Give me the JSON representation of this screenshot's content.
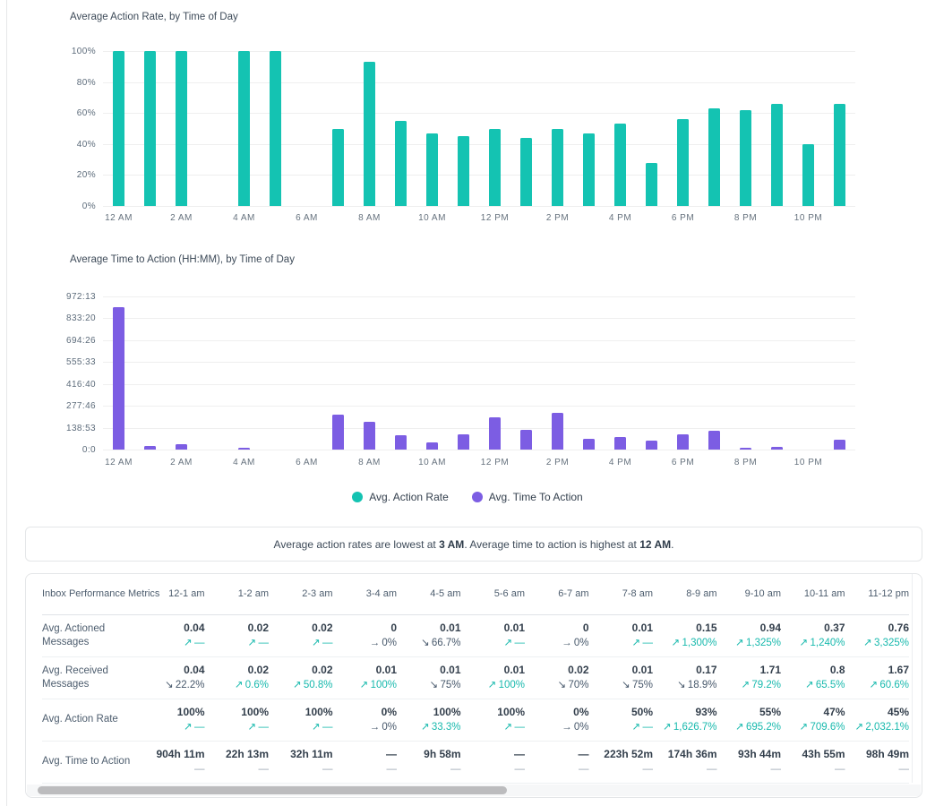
{
  "colors": {
    "teal": "#14C3B2",
    "purple": "#7C5DE3",
    "trend_up": "#17B9AD",
    "trend_down": "#47586B",
    "grid": "#EFEFEF",
    "border": "#E4E6E8"
  },
  "icons": {
    "up": "↗",
    "down": "↘",
    "flat": "→",
    "legend_dot": "circle"
  },
  "chart_data": [
    {
      "type": "bar",
      "title": "Average Action Rate, by Time of Day",
      "series_name": "Avg. Action Rate",
      "color": "#14C3B2",
      "unit": "%",
      "x": [
        "12 AM",
        "1 AM",
        "2 AM",
        "3 AM",
        "4 AM",
        "5 AM",
        "6 AM",
        "7 AM",
        "8 AM",
        "9 AM",
        "10 AM",
        "11 AM",
        "12 PM",
        "1 PM",
        "2 PM",
        "3 PM",
        "4 PM",
        "5 PM",
        "6 PM",
        "7 PM",
        "8 PM",
        "9 PM",
        "10 PM",
        "11 PM"
      ],
      "values": [
        100,
        100,
        100,
        0,
        100,
        100,
        0,
        50,
        93,
        55,
        47,
        45,
        50,
        44,
        50,
        47,
        53,
        28,
        56,
        63,
        62,
        66,
        40,
        66
      ],
      "ylim": [
        0,
        100
      ],
      "y_ticks": [
        "0%",
        "20%",
        "40%",
        "60%",
        "80%",
        "100%"
      ],
      "x_ticks": [
        "12 AM",
        "2 AM",
        "4 AM",
        "6 AM",
        "8 AM",
        "10 AM",
        "12 PM",
        "2 PM",
        "4 PM",
        "6 PM",
        "8 PM",
        "10 PM"
      ],
      "grid": true,
      "legend_position": "bottom-center"
    },
    {
      "type": "bar",
      "title": "Average Time to Action (HH:MM), by Time of Day",
      "series_name": "Avg. Time To Action",
      "color": "#7C5DE3",
      "unit": "hours",
      "x": [
        "12 AM",
        "1 AM",
        "2 AM",
        "3 AM",
        "4 AM",
        "5 AM",
        "6 AM",
        "7 AM",
        "8 AM",
        "9 AM",
        "10 AM",
        "11 AM",
        "12 PM",
        "1 PM",
        "2 PM",
        "3 PM",
        "4 PM",
        "5 PM",
        "6 PM",
        "7 PM",
        "8 PM",
        "9 PM",
        "10 PM",
        "11 PM"
      ],
      "values": [
        904.18,
        22.22,
        32.18,
        0,
        9.97,
        0,
        0,
        223.87,
        174.6,
        93.73,
        43.92,
        98.82,
        203,
        124,
        234,
        68,
        82,
        59,
        99,
        122,
        13,
        15,
        0,
        60
      ],
      "ylim": [
        0,
        972.22
      ],
      "y_ticks": [
        "0:0",
        "138:53",
        "277:46",
        "416:40",
        "555:33",
        "694:26",
        "833:20",
        "972:13"
      ],
      "x_ticks": [
        "12 AM",
        "2 AM",
        "4 AM",
        "6 AM",
        "8 AM",
        "10 AM",
        "12 PM",
        "2 PM",
        "4 PM",
        "6 PM",
        "8 PM",
        "10 PM"
      ],
      "grid": true,
      "legend_position": "bottom-center"
    }
  ],
  "legend": {
    "items": [
      {
        "label": "Avg. Action Rate",
        "color_key": "teal"
      },
      {
        "label": "Avg. Time To Action",
        "color_key": "purple"
      }
    ]
  },
  "summary": {
    "pre": "Average action rates are lowest at ",
    "bold1": "3 AM",
    "mid": ". Average time to action is highest at ",
    "bold2": "12 AM",
    "post": "."
  },
  "table": {
    "title": "Inbox Performance Metrics",
    "columns": [
      "12-1 am",
      "1-2 am",
      "2-3 am",
      "3-4 am",
      "4-5 am",
      "5-6 am",
      "6-7 am",
      "7-8 am",
      "8-9 am",
      "9-10 am",
      "10-11 am",
      "11-12 pm"
    ],
    "rows": [
      {
        "label": "Avg. Actioned Messages",
        "cells": [
          {
            "v": "0.04",
            "a": "up",
            "c": "—"
          },
          {
            "v": "0.02",
            "a": "up",
            "c": "—"
          },
          {
            "v": "0.02",
            "a": "up",
            "c": "—"
          },
          {
            "v": "0",
            "a": "flat",
            "c": "0%"
          },
          {
            "v": "0.01",
            "a": "down",
            "c": "66.7%"
          },
          {
            "v": "0.01",
            "a": "up",
            "c": "—"
          },
          {
            "v": "0",
            "a": "flat",
            "c": "0%"
          },
          {
            "v": "0.01",
            "a": "up",
            "c": "—"
          },
          {
            "v": "0.15",
            "a": "up",
            "c": "1,300%"
          },
          {
            "v": "0.94",
            "a": "up",
            "c": "1,325%"
          },
          {
            "v": "0.37",
            "a": "up",
            "c": "1,240%"
          },
          {
            "v": "0.76",
            "a": "up",
            "c": "3,325%"
          }
        ]
      },
      {
        "label": "Avg. Received Messages",
        "cells": [
          {
            "v": "0.04",
            "a": "down",
            "c": "22.2%"
          },
          {
            "v": "0.02",
            "a": "up",
            "c": "0.6%"
          },
          {
            "v": "0.02",
            "a": "up",
            "c": "50.8%"
          },
          {
            "v": "0.01",
            "a": "up",
            "c": "100%"
          },
          {
            "v": "0.01",
            "a": "down",
            "c": "75%"
          },
          {
            "v": "0.01",
            "a": "up",
            "c": "100%"
          },
          {
            "v": "0.02",
            "a": "down",
            "c": "70%"
          },
          {
            "v": "0.01",
            "a": "down",
            "c": "75%"
          },
          {
            "v": "0.17",
            "a": "down",
            "c": "18.9%"
          },
          {
            "v": "1.71",
            "a": "up",
            "c": "79.2%"
          },
          {
            "v": "0.8",
            "a": "up",
            "c": "65.5%"
          },
          {
            "v": "1.67",
            "a": "up",
            "c": "60.6%"
          }
        ]
      },
      {
        "label": "Avg. Action Rate",
        "cells": [
          {
            "v": "100%",
            "a": "up",
            "c": "—"
          },
          {
            "v": "100%",
            "a": "up",
            "c": "—"
          },
          {
            "v": "100%",
            "a": "up",
            "c": "—"
          },
          {
            "v": "0%",
            "a": "flat",
            "c": "0%"
          },
          {
            "v": "100%",
            "a": "up",
            "c": "33.3%"
          },
          {
            "v": "100%",
            "a": "up",
            "c": "—"
          },
          {
            "v": "0%",
            "a": "flat",
            "c": "0%"
          },
          {
            "v": "50%",
            "a": "up",
            "c": "—"
          },
          {
            "v": "93%",
            "a": "up",
            "c": "1,626.7%"
          },
          {
            "v": "55%",
            "a": "up",
            "c": "695.2%"
          },
          {
            "v": "47%",
            "a": "up",
            "c": "709.6%"
          },
          {
            "v": "45%",
            "a": "up",
            "c": "2,032.1%"
          }
        ]
      },
      {
        "label": "Avg. Time to Action",
        "cells": [
          {
            "v": "904h 11m",
            "a": "none",
            "c": "—"
          },
          {
            "v": "22h 13m",
            "a": "none",
            "c": "—"
          },
          {
            "v": "32h 11m",
            "a": "none",
            "c": "—"
          },
          {
            "v": "—",
            "a": "none",
            "c": "—"
          },
          {
            "v": "9h 58m",
            "a": "none",
            "c": "—"
          },
          {
            "v": "—",
            "a": "none",
            "c": "—"
          },
          {
            "v": "—",
            "a": "none",
            "c": "—"
          },
          {
            "v": "223h 52m",
            "a": "none",
            "c": "—"
          },
          {
            "v": "174h 36m",
            "a": "none",
            "c": "—"
          },
          {
            "v": "93h 44m",
            "a": "none",
            "c": "—"
          },
          {
            "v": "43h 55m",
            "a": "none",
            "c": "—"
          },
          {
            "v": "98h 49m",
            "a": "none",
            "c": "—"
          }
        ]
      }
    ]
  }
}
